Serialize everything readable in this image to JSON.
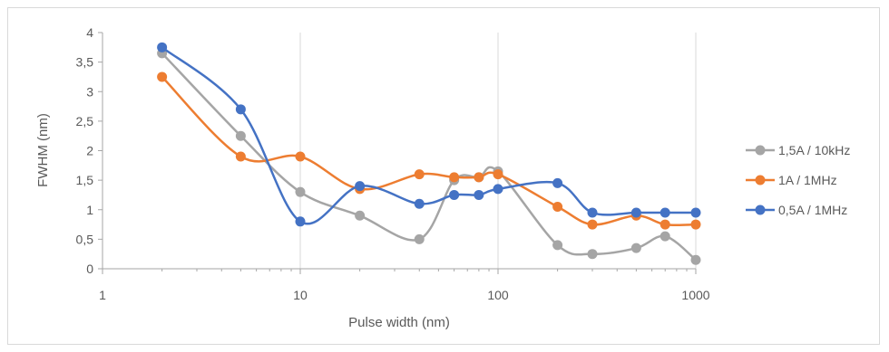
{
  "chart_data": {
    "type": "line",
    "title": "",
    "xlabel": "Pulse width (nm)",
    "ylabel": "FWHM (nm)",
    "xscale": "log",
    "xlim": [
      1,
      1000
    ],
    "ylim": [
      0,
      4
    ],
    "x_ticks": [
      "1",
      "10",
      "100",
      "1000"
    ],
    "y_ticks": [
      "0",
      "0,5",
      "1",
      "1,5",
      "2",
      "2,5",
      "3",
      "3,5",
      "4"
    ],
    "grid": "vertical major gridlines",
    "legend_position": "right",
    "series": [
      {
        "name": "1,5A / 10kHz",
        "color": "#a5a5a5",
        "x": [
          2,
          5,
          10,
          20,
          40,
          60,
          80,
          100,
          200,
          300,
          500,
          700,
          1000
        ],
        "y": [
          3.65,
          2.25,
          1.3,
          0.9,
          0.5,
          1.5,
          1.55,
          1.65,
          0.4,
          0.25,
          0.35,
          0.55,
          0.15
        ]
      },
      {
        "name": "1A / 1MHz",
        "color": "#ed7d31",
        "x": [
          2,
          5,
          10,
          20,
          40,
          60,
          80,
          100,
          200,
          300,
          500,
          700,
          1000
        ],
        "y": [
          3.25,
          1.9,
          1.9,
          1.35,
          1.6,
          1.55,
          1.55,
          1.6,
          1.05,
          0.75,
          0.9,
          0.75,
          0.75
        ]
      },
      {
        "name": "0,5A / 1MHz",
        "color": "#4472c4",
        "x": [
          2,
          5,
          10,
          20,
          40,
          60,
          80,
          100,
          200,
          300,
          500,
          700,
          1000
        ],
        "y": [
          3.75,
          2.7,
          0.8,
          1.4,
          1.1,
          1.25,
          1.25,
          1.35,
          1.45,
          0.95,
          0.95,
          0.95,
          0.95
        ]
      }
    ]
  }
}
